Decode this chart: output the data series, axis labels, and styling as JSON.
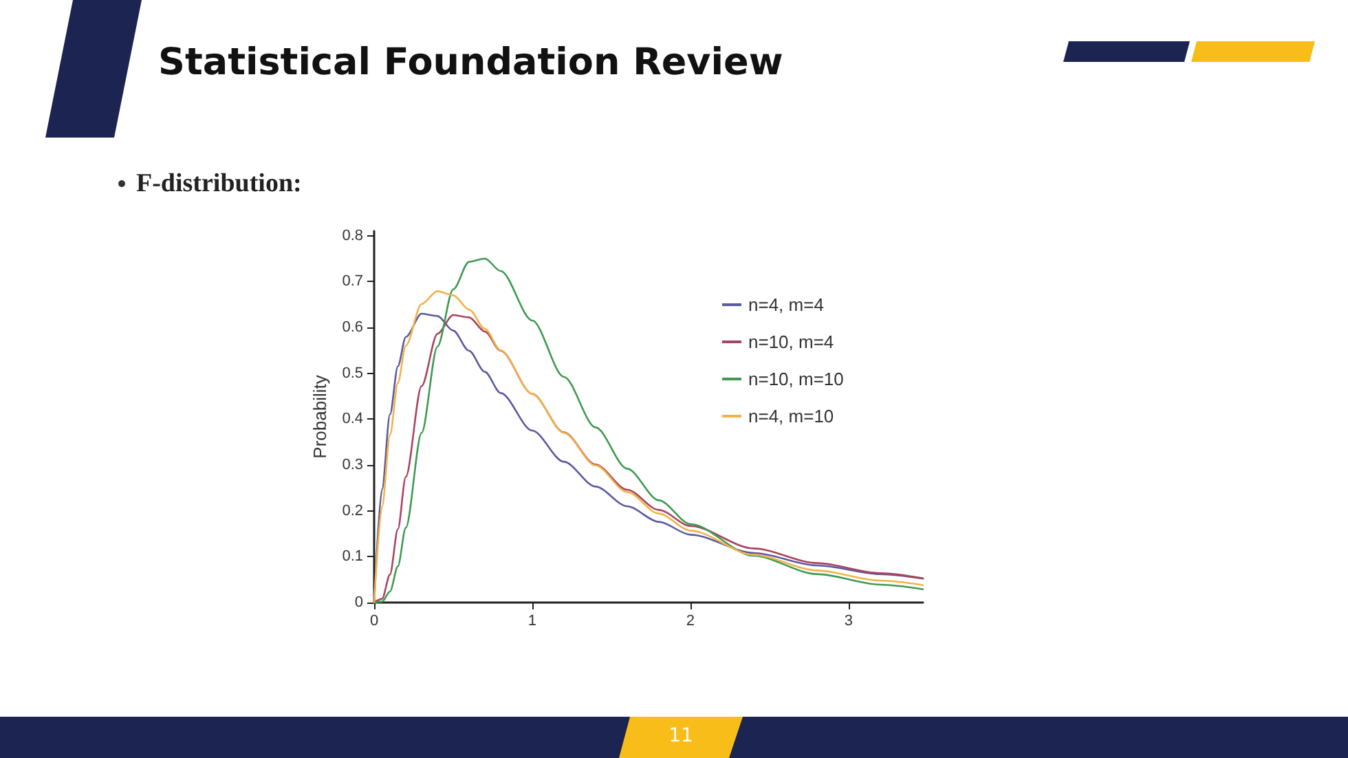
{
  "chart_data": {
    "type": "line",
    "title": "Statistical Foundation Review",
    "subtitle": "F-distribution:",
    "ylabel": "Probability",
    "annotations": [
      "11"
    ],
    "x": [
      0,
      0.05,
      0.1,
      0.15,
      0.2,
      0.3,
      0.4,
      0.5,
      0.6,
      0.7,
      0.8,
      1.0,
      1.2,
      1.4,
      1.6,
      1.8,
      2.0,
      2.4,
      2.8,
      3.2,
      3.47
    ],
    "series": [
      {
        "name": "n=4, m=4",
        "color": "#5a5aa0",
        "values": [
          0,
          0.247,
          0.41,
          0.515,
          0.579,
          0.63,
          0.625,
          0.593,
          0.549,
          0.503,
          0.457,
          0.375,
          0.307,
          0.253,
          0.21,
          0.176,
          0.148,
          0.108,
          0.081,
          0.062,
          0.052
        ]
      },
      {
        "name": "n=10, m=4",
        "color": "#a8445e",
        "values": [
          0,
          0.008,
          0.061,
          0.16,
          0.274,
          0.472,
          0.586,
          0.627,
          0.622,
          0.591,
          0.549,
          0.455,
          0.371,
          0.301,
          0.246,
          0.202,
          0.167,
          0.118,
          0.086,
          0.064,
          0.053
        ]
      },
      {
        "name": "n=10, m=10",
        "color": "#3e9a50",
        "values": [
          0,
          0.002,
          0.024,
          0.079,
          0.163,
          0.37,
          0.558,
          0.683,
          0.743,
          0.75,
          0.723,
          0.615,
          0.492,
          0.382,
          0.292,
          0.223,
          0.171,
          0.102,
          0.062,
          0.039,
          0.029
        ]
      },
      {
        "name": "n=4, m=10",
        "color": "#f2b24a",
        "values": [
          0,
          0.209,
          0.365,
          0.479,
          0.56,
          0.651,
          0.679,
          0.67,
          0.639,
          0.597,
          0.55,
          0.455,
          0.37,
          0.299,
          0.241,
          0.194,
          0.157,
          0.104,
          0.07,
          0.048,
          0.038
        ]
      }
    ],
    "xlim": [
      0,
      3.47
    ],
    "xticks": [
      0,
      1,
      2,
      3
    ],
    "ylim": [
      0,
      0.81
    ],
    "yticks": [
      0,
      0.1,
      0.2,
      0.3,
      0.4,
      0.5,
      0.6,
      0.7,
      0.8
    ],
    "grid": false,
    "legend": "top right",
    "marker": "none",
    "line_style": "solid"
  }
}
